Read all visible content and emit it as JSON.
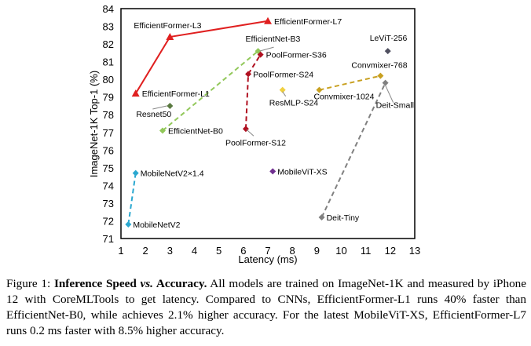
{
  "chart_data": {
    "type": "scatter",
    "xlabel": "Latency (ms)",
    "ylabel": "ImageNet-1K Top-1 (%)",
    "xlim": [
      1,
      13
    ],
    "ylim": [
      71,
      84
    ],
    "xticks": [
      1,
      2,
      3,
      4,
      5,
      6,
      7,
      8,
      9,
      10,
      11,
      12,
      13
    ],
    "yticks": [
      71,
      72,
      73,
      74,
      75,
      76,
      77,
      78,
      79,
      80,
      81,
      82,
      83,
      84
    ],
    "grid": false,
    "series": [
      {
        "color": "#e02020",
        "marker": "triangle",
        "line": "solid",
        "points": [
          {
            "label": "EfficientFormer-L1",
            "x": 1.6,
            "y": 79.2
          },
          {
            "label": "EfficientFormer-L3",
            "x": 3.0,
            "y": 82.4
          },
          {
            "label": "EfficientFormer-L7",
            "x": 7.0,
            "y": 83.3
          }
        ]
      },
      {
        "color": "#92c85a",
        "marker": "diamond",
        "line": "dashed",
        "points": [
          {
            "label": "EfficientNet-B0",
            "x": 2.7,
            "y": 77.1
          },
          {
            "label": "EfficientNet-B3",
            "x": 6.6,
            "y": 81.6
          }
        ]
      },
      {
        "color": "#b01020",
        "marker": "diamond",
        "line": "dashed",
        "points": [
          {
            "label": "PoolFormer-S12",
            "x": 6.1,
            "y": 77.2
          },
          {
            "label": "PoolFormer-S24",
            "x": 6.2,
            "y": 80.3
          },
          {
            "label": "PoolFormer-S36",
            "x": 6.7,
            "y": 81.4
          }
        ]
      },
      {
        "color": "#2aa8d0",
        "marker": "diamond",
        "line": "dashed",
        "points": [
          {
            "label": "MobileNetV2",
            "x": 1.3,
            "y": 71.8
          },
          {
            "label": "MobileNetV2×1.4",
            "x": 1.6,
            "y": 74.7
          }
        ]
      },
      {
        "color": "#c8a020",
        "marker": "diamond",
        "line": "dashed",
        "points": [
          {
            "label": "Convmixer-1024",
            "x": 9.1,
            "y": 79.4
          },
          {
            "label": "Convmixer-768",
            "x": 11.6,
            "y": 80.2
          }
        ]
      },
      {
        "color": "#808080",
        "marker": "diamond",
        "line": "dashed",
        "points": [
          {
            "label": "Deit-Tiny",
            "x": 9.2,
            "y": 72.2
          },
          {
            "label": "Deit-Small",
            "x": 11.8,
            "y": 79.8
          }
        ]
      },
      {
        "color": "#5a7a40",
        "marker": "diamond",
        "line": "none",
        "points": [
          {
            "label": "Resnet50",
            "x": 3.0,
            "y": 78.5
          }
        ]
      },
      {
        "color": "#f0d040",
        "marker": "diamond",
        "line": "none",
        "points": [
          {
            "label": "ResMLP-S24",
            "x": 7.6,
            "y": 79.4
          }
        ]
      },
      {
        "color": "#505060",
        "marker": "diamond",
        "line": "none",
        "points": [
          {
            "label": "LeViT-256",
            "x": 11.9,
            "y": 81.6
          }
        ]
      },
      {
        "color": "#703090",
        "marker": "diamond",
        "line": "none",
        "points": [
          {
            "label": "MobileViT-XS",
            "x": 7.2,
            "y": 74.8
          }
        ]
      }
    ]
  },
  "caption": {
    "prefix": "Figure 1: ",
    "bold1": "Inference Speed ",
    "bold_vs": "vs.",
    "bold2": " Accuracy.",
    "text": " All models are trained on ImageNet-1K and measured by iPhone 12 with CoreMLTools to get latency. Compared to CNNs, EfficientFormer-L1 runs 40% faster than EfficientNet-B0, while achieves 2.1% higher accuracy. For the latest MobileViT-XS, EfficientFormer-L7 runs 0.2 ms faster with 8.5% higher accuracy."
  }
}
